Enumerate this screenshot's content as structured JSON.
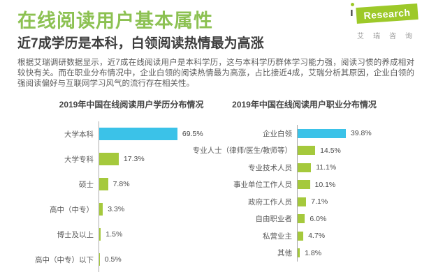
{
  "header": {
    "title": "在线阅读用户基本属性",
    "subtitle": "近7成学历是本科，白领阅读热情最为高涨",
    "paragraph": "根据艾瑞调研数据显示，近7成在线阅读用户是本科学历，这与本科学历群体学习能力强，阅读习惯的养成相对较快有关。而在职业分布情况中，企业白领的阅读热情最为高涨，占比接近4成，艾瑞分析其原因，企业白领的强阅读偏好与互联网学习风气的流行存在相关性。"
  },
  "logo": {
    "i_char": "ı",
    "brand": "Research",
    "caption": "艾瑞咨询"
  },
  "colors": {
    "title_green": "#8CC152",
    "logo_green": "#9DC929",
    "bar_green": "#A5C93C",
    "bar_cyan": "#3BC2E8",
    "subtitle_dark": "#3D3D3D",
    "body_gray": "#5A5A5A"
  },
  "chart_data": [
    {
      "type": "bar",
      "orientation": "horizontal",
      "title": "2019年中国在线阅读用户学历分布情况",
      "categories": [
        "大学本科",
        "大学专科",
        "硕士",
        "高中（中专）",
        "博士及以上",
        "高中（中专）以下"
      ],
      "values": [
        69.5,
        17.3,
        7.8,
        3.3,
        1.5,
        0.5
      ],
      "value_labels": [
        "69.5%",
        "17.3%",
        "7.8%",
        "3.3%",
        "1.5%",
        "0.5%"
      ],
      "highlight_index": 0,
      "highlight_color": "#3BC2E8",
      "bar_color": "#A5C93C",
      "xlim": [
        0,
        100
      ],
      "grid": false,
      "legend": "none"
    },
    {
      "type": "bar",
      "orientation": "horizontal",
      "title": "2019年中国在线阅读用户职业分布情况",
      "categories": [
        "企业白领",
        "专业人士（律师/医生/教师等）",
        "专业技术人员",
        "事业单位工作人员",
        "政府工作人员",
        "自由职业者",
        "私营业主",
        "其他"
      ],
      "values": [
        39.8,
        14.5,
        11.1,
        10.1,
        7.1,
        6.0,
        4.7,
        1.8
      ],
      "value_labels": [
        "39.8%",
        "14.5%",
        "11.1%",
        "10.1%",
        "7.1%",
        "6.0%",
        "4.7%",
        "1.8%"
      ],
      "highlight_index": 0,
      "highlight_color": "#3BC2E8",
      "bar_color": "#A5C93C",
      "xlim": [
        0,
        100
      ],
      "grid": false,
      "legend": "none"
    }
  ]
}
